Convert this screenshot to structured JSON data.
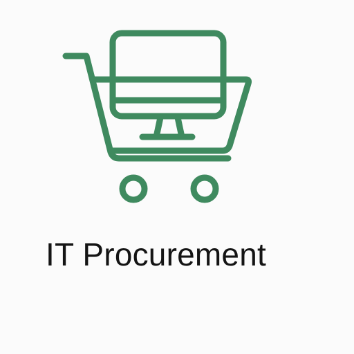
{
  "logo": {
    "icon": "shopping-cart-with-monitor-icon",
    "title": "IT Procurement",
    "colors": {
      "accent": "#3f8a5f",
      "text": "#141414",
      "background": "#fbfbfb"
    }
  }
}
